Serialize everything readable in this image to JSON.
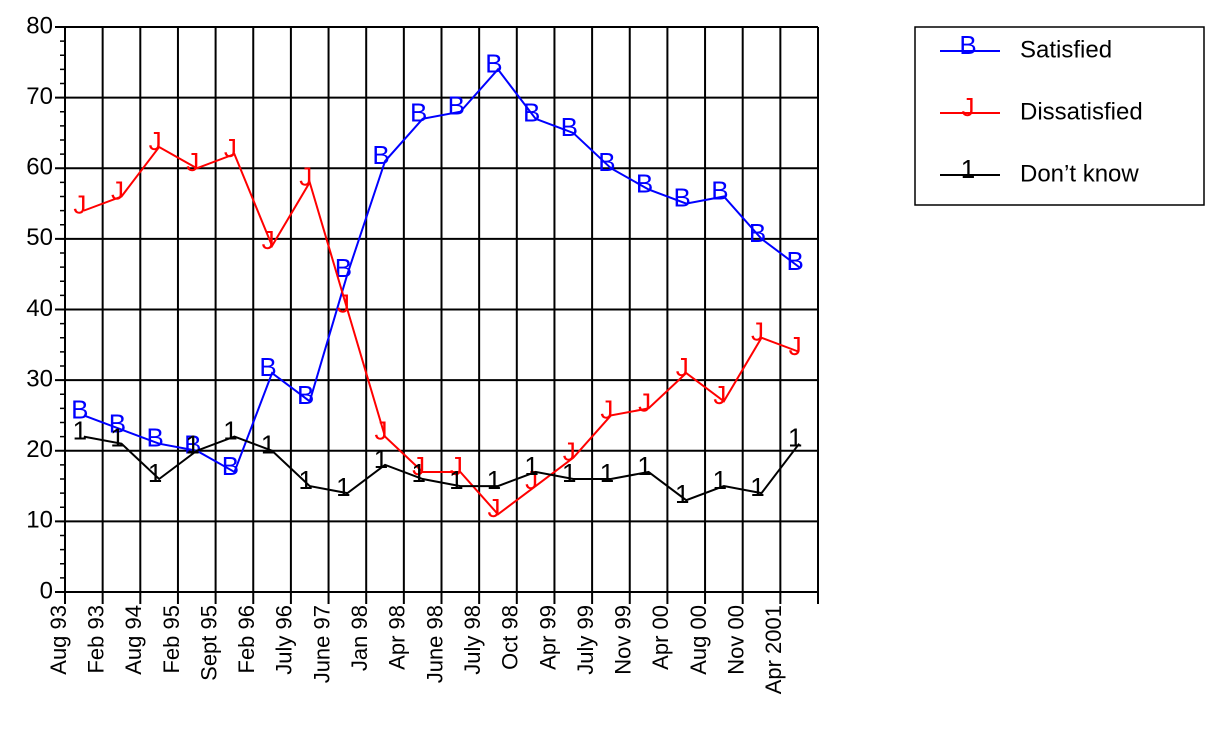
{
  "chart_data": {
    "type": "line",
    "categories": [
      "Aug 93",
      "Feb 93",
      "Aug 94",
      "Feb 95",
      "Sept 95",
      "Feb 96",
      "July 96",
      "June 97",
      "Jan 98",
      "Apr 98",
      "June 98",
      "July 98",
      "Oct 98",
      "Apr 99",
      "July 99",
      "Nov 99",
      "Apr 00",
      "Aug 00",
      "Nov 00",
      "Apr 2001"
    ],
    "series": [
      {
        "name": "Satisfied",
        "color": "#0000ff",
        "marker": "B",
        "values": [
          25,
          23,
          21,
          20,
          17,
          31,
          27,
          45,
          61,
          67,
          68,
          74,
          67,
          65,
          60,
          57,
          55,
          56,
          50,
          46
        ]
      },
      {
        "name": "Dissatisfied",
        "color": "#ff0000",
        "marker": "J",
        "values": [
          54,
          56,
          63,
          60,
          62,
          49,
          58,
          40,
          22,
          17,
          17,
          11,
          15,
          19,
          25,
          26,
          31,
          27,
          36,
          34
        ]
      },
      {
        "name": "Don’t know",
        "color": "#000000",
        "marker": "1",
        "values": [
          22,
          21,
          16,
          20,
          22,
          20,
          15,
          14,
          18,
          16,
          15,
          15,
          17,
          16,
          16,
          17,
          13,
          15,
          14,
          21
        ]
      }
    ],
    "ylim": [
      0,
      80
    ],
    "yticks": [
      0,
      10,
      20,
      30,
      40,
      50,
      60,
      70,
      80
    ],
    "grid": true,
    "legend": "right"
  }
}
